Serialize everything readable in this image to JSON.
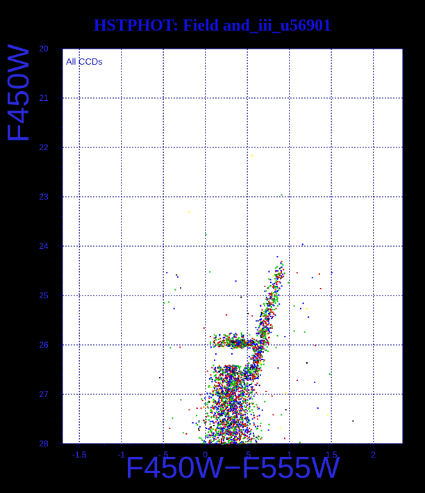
{
  "chart_data": {
    "type": "scatter",
    "title": "HSTPHOT: Field and_iii_u56901",
    "xlabel": "F450W−F555W",
    "ylabel": "F450W",
    "annotation": "All CCDs",
    "xlim": [
      -1.7,
      2.35
    ],
    "ylim": [
      28,
      20
    ],
    "y_inverted": true,
    "grid": true,
    "x_ticks": [
      "-1.5",
      "-1",
      "-.5",
      "0",
      ".5",
      "1",
      "1.5",
      "2"
    ],
    "x_tick_values": [
      -1.5,
      -1,
      -0.5,
      0,
      0.5,
      1,
      1.5,
      2
    ],
    "y_ticks": [
      "20",
      "21",
      "22",
      "23",
      "24",
      "25",
      "26",
      "27",
      "28"
    ],
    "y_tick_values": [
      20,
      21,
      22,
      23,
      24,
      25,
      26,
      27,
      28
    ],
    "point_colors": [
      "#00c800",
      "#0000ff",
      "#e00000",
      "#000000",
      "#ffff00"
    ],
    "series": [
      {
        "color": "#0000ff",
        "points": [
          [
            0.55,
            25.9
          ],
          [
            0.5,
            26.05
          ],
          [
            0.6,
            25.5
          ],
          [
            0.65,
            25.2
          ],
          [
            0.7,
            24.9
          ],
          [
            0.35,
            26.0
          ],
          [
            0.3,
            27.3
          ],
          [
            0.2,
            27.5
          ],
          [
            0.45,
            27.0
          ],
          [
            0.6,
            26.8
          ],
          [
            0.75,
            24.5
          ],
          [
            0.85,
            24.2
          ],
          [
            1.15,
            23.95
          ],
          [
            0.4,
            27.6
          ],
          [
            0.25,
            27.7
          ],
          [
            0.5,
            26.4
          ]
        ]
      },
      {
        "color": "#e00000",
        "points": [
          [
            0.4,
            26.0
          ],
          [
            0.1,
            25.9
          ],
          [
            0.55,
            25.4
          ],
          [
            0.35,
            27.2
          ],
          [
            0.15,
            27.4
          ],
          [
            0.5,
            26.7
          ],
          [
            0.7,
            24.8
          ],
          [
            0.9,
            24.3
          ],
          [
            -0.2,
            27.3
          ],
          [
            0.3,
            27.8
          ],
          [
            0.8,
            27.4
          ],
          [
            1.3,
            26.0
          ]
        ]
      },
      {
        "color": "#00c800",
        "points": [
          [
            0.45,
            25.95
          ],
          [
            0.2,
            27.0
          ],
          [
            0.6,
            27.2
          ],
          [
            0.0,
            27.5
          ],
          [
            0.85,
            25.8
          ],
          [
            0.9,
            22.95
          ],
          [
            0.0,
            23.75
          ],
          [
            0.55,
            26.2
          ],
          [
            -0.3,
            27.1
          ],
          [
            0.75,
            27.6
          ],
          [
            1.05,
            25.2
          ]
        ]
      },
      {
        "color": "#000000",
        "points": [
          [
            -0.35,
            24.57
          ],
          [
            0.5,
            25.35
          ],
          [
            1.2,
            26.35
          ],
          [
            1.75,
            27.53
          ],
          [
            0.45,
            26.5
          ],
          [
            0.3,
            27.6
          ],
          [
            -0.55,
            26.65
          ],
          [
            0.95,
            27.3
          ]
        ]
      },
      {
        "color": "#ffff00",
        "points": [
          [
            -0.2,
            23.3
          ],
          [
            0.55,
            22.15
          ],
          [
            1.2,
            25.25
          ],
          [
            0.95,
            26.95
          ],
          [
            0.1,
            27.7
          ],
          [
            1.45,
            27.4
          ]
        ]
      }
    ]
  }
}
